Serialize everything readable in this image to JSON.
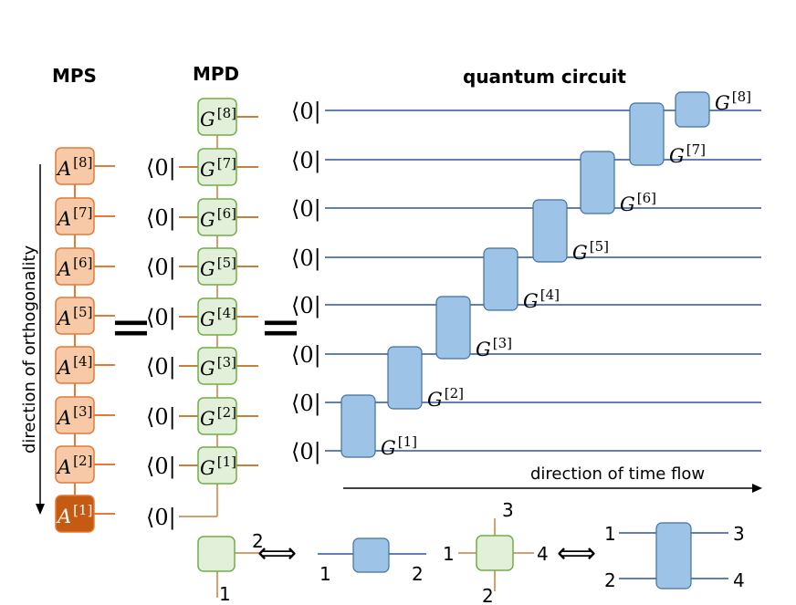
{
  "headers": {
    "mps": "MPS",
    "mpd": "MPD",
    "circuit": "quantum circuit"
  },
  "bra": "⟨0|",
  "equals": "=",
  "equivalence": "⟺",
  "mps_labels": [
    {
      "base": "A",
      "sup": "[8]"
    },
    {
      "base": "A",
      "sup": "[7]"
    },
    {
      "base": "A",
      "sup": "[6]"
    },
    {
      "base": "A",
      "sup": "[5]"
    },
    {
      "base": "A",
      "sup": "[4]"
    },
    {
      "base": "A",
      "sup": "[3]"
    },
    {
      "base": "A",
      "sup": "[2]"
    },
    {
      "base": "A",
      "sup": "[1]"
    }
  ],
  "mpd_labels": [
    {
      "base": "G",
      "sup": "[8]"
    },
    {
      "base": "G",
      "sup": "[7]"
    },
    {
      "base": "G",
      "sup": "[6]"
    },
    {
      "base": "G",
      "sup": "[5]"
    },
    {
      "base": "G",
      "sup": "[4]"
    },
    {
      "base": "G",
      "sup": "[3]"
    },
    {
      "base": "G",
      "sup": "[2]"
    },
    {
      "base": "G",
      "sup": "[1]"
    }
  ],
  "gate_labels": [
    {
      "base": "G",
      "sup": "[1]"
    },
    {
      "base": "G",
      "sup": "[2]"
    },
    {
      "base": "G",
      "sup": "[3]"
    },
    {
      "base": "G",
      "sup": "[4]"
    },
    {
      "base": "G",
      "sup": "[5]"
    },
    {
      "base": "G",
      "sup": "[6]"
    },
    {
      "base": "G",
      "sup": "[7]"
    },
    {
      "base": "G",
      "sup": "[8]"
    }
  ],
  "annotations": {
    "orthogonality": "direction of orthogonality",
    "time_flow": "direction of time flow"
  },
  "legend": {
    "two_leg_tensor": {
      "bottom": "1",
      "right": "2"
    },
    "two_leg_gate": {
      "left": "1",
      "right": "2"
    },
    "four_leg_tensor": {
      "top": "3",
      "left": "1",
      "right": "4",
      "bottom": "2"
    },
    "four_leg_gate": {
      "top_left": "1",
      "top_right": "3",
      "bottom_left": "2",
      "bottom_right": "4"
    }
  },
  "colors": {
    "mps_fill": "#f8c9a7",
    "mps_stroke": "#e07b39",
    "mps_highlight_fill": "#c65a12",
    "mpd_fill": "#e2f0d9",
    "mpd_stroke": "#70ad47",
    "gate_fill": "#9dc3e6",
    "gate_stroke": "#41719c",
    "leg": "#c5803a",
    "wire": "#2f5597"
  }
}
